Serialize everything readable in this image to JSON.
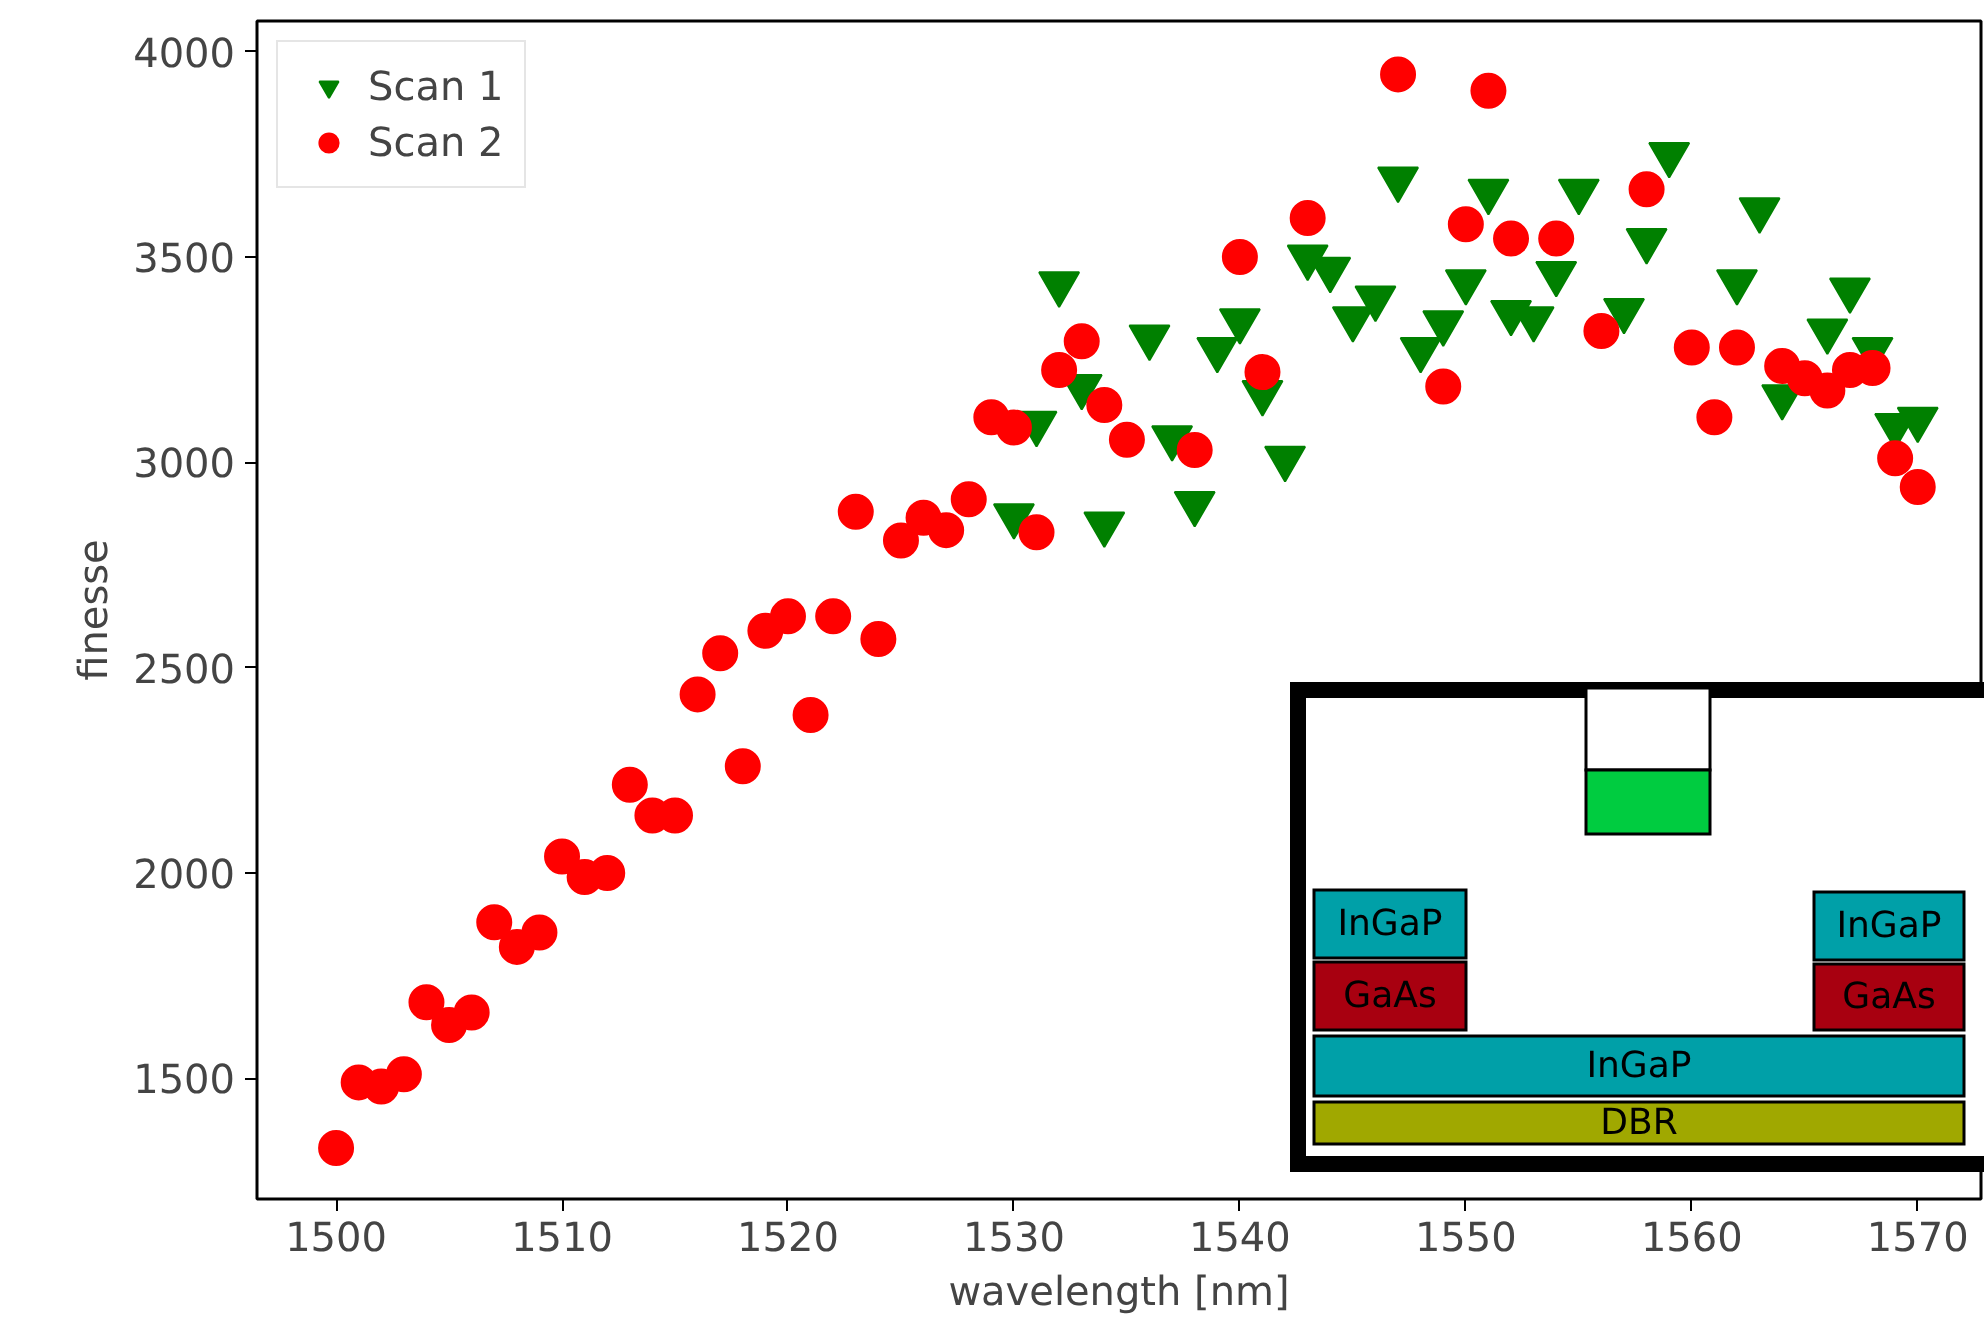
{
  "chart_data": {
    "type": "scatter",
    "xlabel": "wavelength [nm]",
    "ylabel": "finesse",
    "xlim": [
      1496.5,
      1572.8
    ],
    "ylim": [
      1206,
      4075
    ],
    "xticks": [
      1500,
      1510,
      1520,
      1530,
      1540,
      1550,
      1560,
      1570
    ],
    "yticks": [
      1500,
      2000,
      2500,
      3000,
      3500,
      4000
    ],
    "grid": false,
    "legend": "top left",
    "annotations": [
      "InGaP",
      "GaAs",
      "InGaP",
      "GaAs",
      "InGaP",
      "DBR"
    ],
    "series": [
      {
        "name": "Scan 1",
        "color": "#008000",
        "marker": "triangle",
        "x": [
          1530,
          1531,
          1532,
          1533,
          1534,
          1535,
          1536,
          1537,
          1538,
          1539,
          1540,
          1541,
          1542,
          1543,
          1544,
          1545,
          1546,
          1547,
          1548,
          1549,
          1550,
          1551,
          1552,
          1553,
          1554,
          1555,
          1556,
          1557,
          1558,
          1559,
          1561,
          1562,
          1563,
          1564,
          1565,
          1566,
          1567,
          1568,
          1569,
          1570
        ],
        "values": [
          2870,
          3095,
          3435,
          3185,
          2850,
          null,
          3305,
          3060,
          2900,
          3275,
          3345,
          3170,
          3010,
          3500,
          3470,
          3350,
          3400,
          3690,
          3275,
          3340,
          3440,
          3660,
          3365,
          3350,
          3460,
          3660,
          null,
          3370,
          3540,
          3750,
          null,
          3440,
          3615,
          3160,
          null,
          3320,
          3420,
          3275,
          3090,
          3105
        ]
      },
      {
        "name": "Scan 2",
        "color": "#ff0000",
        "marker": "circle",
        "x": [
          1500,
          1501,
          1502,
          1503,
          1504,
          1505,
          1506,
          1507,
          1508,
          1509,
          1510,
          1511,
          1512,
          1513,
          1514,
          1515,
          1516,
          1517,
          1518,
          1519,
          1520,
          1521,
          1522,
          1523,
          1524,
          1525,
          1526,
          1527,
          1528,
          1529,
          1530,
          1531,
          1532,
          1533,
          1534,
          1535,
          1538,
          1540,
          1541,
          1543,
          1547,
          1549,
          1550,
          1551,
          1552,
          1554,
          1556,
          1558,
          1560,
          1561,
          1562,
          1564,
          1565,
          1566,
          1567,
          1568,
          1569,
          1570
        ],
        "values": [
          1330,
          1490,
          1480,
          1510,
          1685,
          1630,
          1660,
          1880,
          1820,
          1855,
          2040,
          1990,
          2000,
          2215,
          2140,
          2140,
          2435,
          2535,
          2260,
          2590,
          2625,
          2385,
          2625,
          2880,
          2570,
          2810,
          2865,
          2835,
          2910,
          3110,
          3085,
          2830,
          3225,
          3295,
          3140,
          3055,
          3030,
          3500,
          3220,
          3595,
          3945,
          3185,
          3580,
          3905,
          3545,
          3545,
          3320,
          3665,
          3280,
          3110,
          3280,
          3235,
          3205,
          3175,
          3225,
          3230,
          3010,
          2940
        ]
      }
    ]
  }
}
